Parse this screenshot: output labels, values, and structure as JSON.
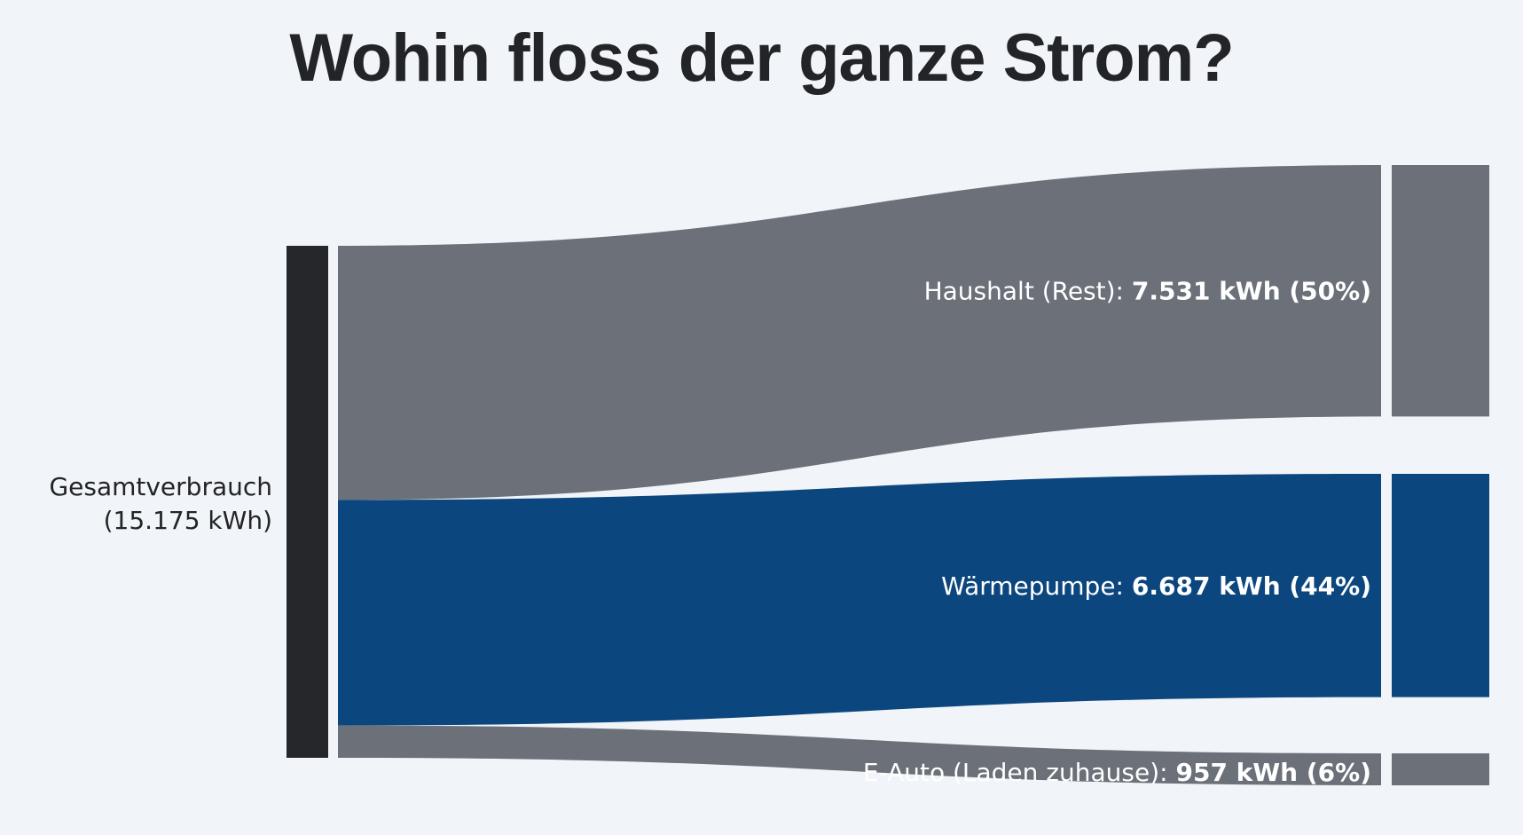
{
  "chart_data": {
    "type": "sankey",
    "title": "Wohin floss der ganze Strom?",
    "source": {
      "name": "Gesamtverbrauch",
      "value_label": "(15.175 kWh)",
      "value": 15175,
      "color": "#25272a"
    },
    "unit": "kWh",
    "flows": [
      {
        "name": "Haushalt (Rest)",
        "value": 7531,
        "value_label": "7.531 kWh (50%)",
        "percent": 50,
        "color": "#6b7079"
      },
      {
        "name": "Wärmepumpe",
        "value": 6687,
        "value_label": "6.687 kWh (44%)",
        "percent": 44,
        "color": "#0b467e"
      },
      {
        "name": "E-Auto (Laden zuhause)",
        "value": 957,
        "value_label": "957 kWh (6%)",
        "percent": 6,
        "color": "#6b7079"
      }
    ]
  }
}
